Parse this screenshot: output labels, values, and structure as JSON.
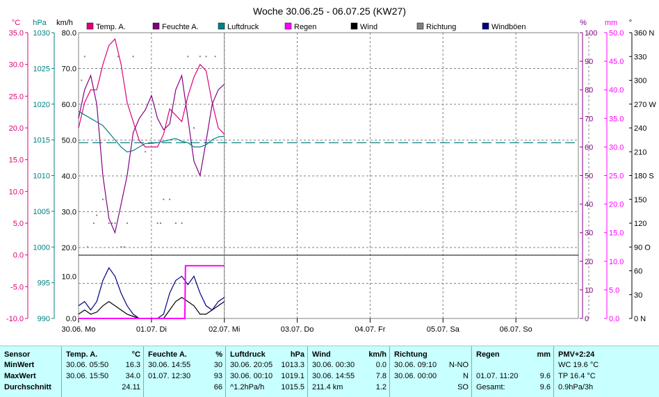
{
  "title": "Woche 30.06.25 - 06.07.25 (KW27)",
  "colors": {
    "temp": "#dd0077",
    "feuchte": "#800080",
    "luftdruck": "#008080",
    "regen": "#ff00ff",
    "wind": "#000000",
    "richtung": "#808080",
    "windboeen": "#000080",
    "grid": "#808080",
    "stats_bg": "#c8ffff"
  },
  "axes": {
    "temp": {
      "unit": "°C",
      "ticks": [
        "35.0",
        "30.0",
        "25.0",
        "20.0",
        "15.0",
        "10.0",
        "5.0",
        "0.0",
        "-5.0",
        "-10.0"
      ]
    },
    "hpa": {
      "unit": "hPa",
      "ticks": [
        "1030",
        "1025",
        "1020",
        "1015",
        "1010",
        "1005",
        "1000",
        "995",
        "990"
      ]
    },
    "kmh": {
      "unit": "km/h",
      "ticks": [
        "80.0",
        "70.0",
        "60.0",
        "50.0",
        "40.0",
        "30.0",
        "20.0",
        "10.0",
        "0.0"
      ]
    },
    "pct": {
      "unit": "%",
      "ticks": [
        "100",
        "90",
        "80",
        "70",
        "60",
        "50",
        "40",
        "30",
        "20",
        "10",
        "0"
      ]
    },
    "mm": {
      "unit": "mm",
      "ticks": [
        "50.0",
        "45.0",
        "40.0",
        "35.0",
        "30.0",
        "25.0",
        "20.0",
        "15.0",
        "10.0",
        "5.0",
        "0.0"
      ]
    },
    "deg": {
      "unit": "°",
      "ticks": [
        "360 N",
        "330",
        "300",
        "270 W",
        "240",
        "210",
        "180 S",
        "150",
        "120",
        "90 O",
        "60",
        "30",
        "0 N"
      ]
    },
    "x_ticks": [
      "30.06. Mo",
      "01.07. Di",
      "02.07. Mi",
      "03.07. Do",
      "04.07. Fr",
      "05.07. Sa",
      "06.07. So"
    ]
  },
  "chart_data": {
    "type": "line",
    "title": "Woche 30.06.25 - 06.07.25 (KW27)",
    "x_unit": "hours since 30.06. 00:00",
    "x_range": [
      0,
      168
    ],
    "legend": [
      "Temp. A.",
      "Feuchte A.",
      "Luftdruck",
      "Regen",
      "Wind",
      "Richtung",
      "Windböen"
    ],
    "series": [
      {
        "name": "Temp. A.",
        "unit": "°C",
        "color": "#dd0077",
        "x": [
          0,
          2,
          4,
          6,
          8,
          10,
          12,
          14,
          16,
          18,
          20,
          22,
          24,
          26,
          28,
          30,
          32,
          34,
          36,
          38,
          40,
          42,
          44,
          46,
          48
        ],
        "y": [
          20,
          24,
          26,
          26,
          30,
          33,
          34,
          30,
          24,
          21,
          18,
          17,
          17,
          17,
          19,
          23,
          22,
          21,
          25,
          28,
          30,
          29,
          24,
          20,
          19
        ]
      },
      {
        "name": "Feuchte A.",
        "unit": "%",
        "color": "#800080",
        "x": [
          0,
          2,
          4,
          6,
          8,
          10,
          12,
          14,
          16,
          18,
          20,
          22,
          24,
          26,
          28,
          30,
          32,
          34,
          36,
          38,
          40,
          42,
          44,
          46,
          48
        ],
        "y": [
          70,
          80,
          85,
          75,
          50,
          35,
          30,
          40,
          50,
          65,
          70,
          73,
          78,
          70,
          66,
          68,
          80,
          85,
          70,
          55,
          50,
          62,
          75,
          80,
          82
        ]
      },
      {
        "name": "Luftdruck",
        "unit": "hPa",
        "color": "#008080",
        "x": [
          0,
          2,
          4,
          6,
          8,
          10,
          12,
          14,
          16,
          18,
          20,
          22,
          24,
          26,
          28,
          30,
          32,
          34,
          36,
          38,
          40,
          42,
          44,
          46,
          48
        ],
        "y": [
          1019,
          1018.5,
          1018,
          1017.5,
          1017,
          1016,
          1015,
          1014,
          1013.3,
          1013.5,
          1014,
          1014.5,
          1014.5,
          1014.6,
          1014.8,
          1015,
          1015.2,
          1014.8,
          1014.6,
          1014,
          1014,
          1014.3,
          1015,
          1015.4,
          1015.5
        ]
      },
      {
        "name": "Wind",
        "unit": "km/h",
        "color": "#000000",
        "x": [
          0,
          2,
          4,
          6,
          8,
          10,
          12,
          14,
          16,
          18,
          20,
          22,
          24,
          26,
          28,
          30,
          32,
          34,
          36,
          38,
          40,
          42,
          44,
          46,
          48
        ],
        "y": [
          1,
          2,
          1,
          1.5,
          3,
          4,
          3,
          2,
          1,
          0.5,
          0,
          0,
          0,
          0,
          0,
          2,
          4,
          5,
          4,
          3,
          1,
          1,
          2,
          3,
          4
        ]
      },
      {
        "name": "Windböen",
        "unit": "km/h",
        "color": "#000080",
        "x": [
          0,
          2,
          4,
          6,
          8,
          10,
          12,
          14,
          16,
          18,
          20,
          22,
          24,
          26,
          28,
          30,
          32,
          34,
          36,
          38,
          40,
          42,
          44,
          46,
          48
        ],
        "y": [
          3,
          4,
          2,
          4,
          9,
          12,
          10,
          6,
          3,
          1,
          0,
          0,
          0,
          0,
          1,
          6,
          9,
          10,
          8,
          10,
          6,
          3,
          2,
          4,
          5
        ]
      },
      {
        "name": "Regen",
        "unit": "mm",
        "color": "#ff00ff",
        "x": [
          0,
          35,
          35.2,
          48
        ],
        "y": [
          0,
          0,
          9.6,
          9.6
        ]
      },
      {
        "name": "Richtung",
        "unit": "°",
        "color": "#808080",
        "x": [
          1,
          2,
          3,
          5,
          6,
          8,
          9,
          10,
          11,
          12,
          13,
          14,
          15,
          16,
          18,
          22,
          26,
          27,
          28,
          30,
          32,
          34,
          36,
          38,
          40,
          42,
          45
        ],
        "y": [
          300,
          330,
          90,
          120,
          130,
          150,
          150,
          120,
          120,
          120,
          330,
          90,
          90,
          120,
          330,
          210,
          120,
          120,
          150,
          150,
          120,
          120,
          330,
          240,
          330,
          330,
          330
        ]
      }
    ],
    "reference_line": {
      "label": "Luftdruck (dashed)",
      "unit": "hPa",
      "value": 1014.6
    }
  },
  "stats": {
    "columns": [
      {
        "header": "Sensor",
        "unit": "",
        "rows": [
          "MinWert",
          "MaxWert",
          "Durchschnitt"
        ]
      },
      {
        "header": "Temp. A.",
        "unit": "°C",
        "rows": [
          {
            "a": "30.06.  05:50",
            "b": "16.3"
          },
          {
            "a": "30.06.  15:50",
            "b": "34.0"
          },
          {
            "a": "",
            "b": "24.11"
          }
        ]
      },
      {
        "header": "Feuchte A.",
        "unit": "%",
        "rows": [
          {
            "a": "30.06.  14:55",
            "b": "30"
          },
          {
            "a": "01.07.  12:30",
            "b": "93"
          },
          {
            "a": "",
            "b": "66"
          }
        ]
      },
      {
        "header": "Luftdruck",
        "unit": "hPa",
        "rows": [
          {
            "a": "30.06.  20:05",
            "b": "1013.3"
          },
          {
            "a": "30.06.  00:10",
            "b": "1019.1"
          },
          {
            "a": "^1.2hPa/h",
            "b": "1015.5"
          }
        ]
      },
      {
        "header": "Wind",
        "unit": "km/h",
        "rows": [
          {
            "a": "30.06.  00:30",
            "b": "0.0"
          },
          {
            "a": "30.06.  14:55",
            "b": "7.8"
          },
          {
            "a": "211.4 km",
            "b": "1.2"
          }
        ]
      },
      {
        "header": "Richtung",
        "unit": "",
        "rows": [
          {
            "a": "30.06.  09:10",
            "b": "N-NO"
          },
          {
            "a": "30.06.  00:00",
            "b": "N"
          },
          {
            "a": "",
            "b": "SO"
          }
        ]
      },
      {
        "header": "Regen",
        "unit": "mm",
        "rows": [
          {
            "a": "",
            "b": ""
          },
          {
            "a": "01.07.  11:20",
            "b": "9.6"
          },
          {
            "a": "Gesamt:",
            "b": "9.6"
          }
        ]
      },
      {
        "header": "PMV+2:24",
        "unit": "",
        "rows": [
          {
            "a": "WC 19.6 °C",
            "b": ""
          },
          {
            "a": "TP 16.4 °C",
            "b": ""
          },
          {
            "a": "0.9hPa/3h",
            "b": ""
          }
        ]
      }
    ]
  }
}
